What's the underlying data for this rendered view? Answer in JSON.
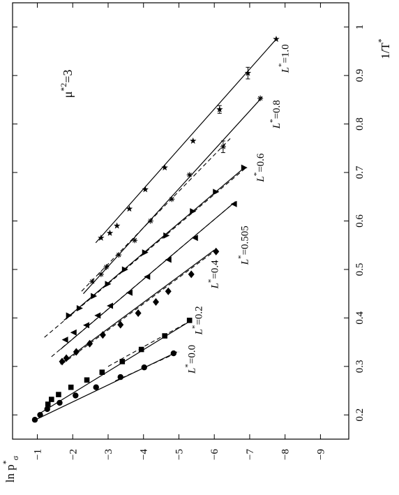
{
  "chart_data": {
    "type": "line",
    "orientation": "rotated-90-cw",
    "title": "",
    "annotation": {
      "mu": "μ",
      "sup": "*2",
      "rest": "=3"
    },
    "xlabel": {
      "main": "1/T",
      "sup": "*"
    },
    "ylabel": {
      "main": "ln p",
      "sub": "σ",
      "sup": "*"
    },
    "xlim": [
      0.15,
      1.05
    ],
    "ylim": [
      -9.8,
      -0.3
    ],
    "xticks": [
      0.2,
      0.3,
      0.4,
      0.5,
      0.6,
      0.7,
      0.8,
      0.9,
      1
    ],
    "xtick_labels": [
      "0.2",
      "0.3",
      "0.4",
      "0.5",
      "0.6",
      "0.7",
      "0.8",
      "0.9",
      "1"
    ],
    "yticks": [
      -1,
      -2,
      -3,
      -4,
      -5,
      -6,
      -7,
      -8,
      -9
    ],
    "ytick_labels": [
      "−1",
      "−2",
      "−3",
      "−4",
      "−5",
      "−6",
      "−7",
      "−8",
      "−9"
    ],
    "grid": false,
    "legend": "none",
    "series": [
      {
        "label_prefix": "L",
        "label_sup": "*",
        "label_value": "=0.0",
        "label_at": [
          0.315,
          -5.45
        ],
        "label_side": "right",
        "marker": "circle",
        "fit": [
          [
            0.19,
            -0.95
          ],
          [
            0.33,
            -4.95
          ]
        ],
        "dashed": [
          [
            0.27,
            -3.2
          ],
          [
            0.33,
            -5.0
          ]
        ],
        "points": [
          [
            0.19,
            -0.93
          ],
          [
            0.2,
            -1.08
          ],
          [
            0.212,
            -1.28
          ],
          [
            0.225,
            -1.63
          ],
          [
            0.24,
            -2.08
          ],
          [
            0.257,
            -2.66
          ],
          [
            0.278,
            -3.35
          ],
          [
            0.298,
            -4.02
          ],
          [
            0.327,
            -4.85
          ]
        ]
      },
      {
        "label_prefix": "L",
        "label_sup": "*",
        "label_value": "=0.2",
        "label_at": [
          0.395,
          -5.65
        ],
        "label_side": "right",
        "marker": "square",
        "fit": [
          [
            0.2,
            -1.0
          ],
          [
            0.395,
            -5.35
          ]
        ],
        "dashed": [
          [
            0.3,
            -3.0
          ],
          [
            0.395,
            -5.35
          ]
        ],
        "points": [
          [
            0.222,
            -1.3
          ],
          [
            0.232,
            -1.4
          ],
          [
            0.242,
            -1.6
          ],
          [
            0.257,
            -1.95
          ],
          [
            0.272,
            -2.4
          ],
          [
            0.288,
            -2.83
          ],
          [
            0.31,
            -3.4
          ],
          [
            0.335,
            -3.94
          ],
          [
            0.363,
            -4.6
          ],
          [
            0.395,
            -5.3
          ]
        ]
      },
      {
        "label_prefix": "L",
        "label_sup": "*",
        "label_value": "=0.4",
        "label_at": [
          0.49,
          -6.1
        ],
        "label_side": "right",
        "marker": "diamond",
        "fit": [
          [
            0.305,
            -1.65
          ],
          [
            0.54,
            -6.0
          ]
        ],
        "dashed": [
          [
            0.305,
            -1.7
          ],
          [
            0.54,
            -6.05
          ]
        ],
        "points": [
          [
            0.31,
            -1.7
          ],
          [
            0.317,
            -1.82
          ],
          [
            0.33,
            -2.1
          ],
          [
            0.347,
            -2.48
          ],
          [
            0.365,
            -2.85
          ],
          [
            0.386,
            -3.35
          ],
          [
            0.41,
            -3.85
          ],
          [
            0.433,
            -4.35
          ],
          [
            0.455,
            -4.7
          ],
          [
            0.49,
            -5.35
          ],
          [
            0.537,
            -6.05
          ]
        ]
      },
      {
        "label_prefix": "L",
        "label_sup": "*",
        "label_value": "=0.505",
        "label_at": [
          0.55,
          -6.95
        ],
        "label_side": "right",
        "marker": "triangle-left",
        "fit": [
          [
            0.335,
            -1.65
          ],
          [
            0.64,
            -6.6
          ]
        ],
        "dashed": [
          [
            0.32,
            -1.4
          ],
          [
            0.64,
            -6.6
          ]
        ],
        "points": [
          [
            0.355,
            -1.78
          ],
          [
            0.37,
            -2.02
          ],
          [
            0.385,
            -2.38
          ],
          [
            0.405,
            -2.7
          ],
          [
            0.425,
            -3.05
          ],
          [
            0.452,
            -3.6
          ],
          [
            0.485,
            -4.1
          ],
          [
            0.52,
            -4.7
          ],
          [
            0.565,
            -5.45
          ],
          [
            0.635,
            -6.55
          ]
        ]
      },
      {
        "label_prefix": "L",
        "label_sup": "*",
        "label_value": "=0.6",
        "label_at": [
          0.71,
          -7.4
        ],
        "label_side": "right",
        "marker": "triangle-right",
        "fit": [
          [
            0.395,
            -1.75
          ],
          [
            0.71,
            -6.85
          ]
        ],
        "dashed": [
          [
            0.36,
            -1.2
          ],
          [
            0.71,
            -6.9
          ]
        ],
        "points": [
          [
            0.405,
            -1.9
          ],
          [
            0.42,
            -2.2
          ],
          [
            0.445,
            -2.6
          ],
          [
            0.47,
            -3.0
          ],
          [
            0.5,
            -3.48
          ],
          [
            0.535,
            -4.05
          ],
          [
            0.57,
            -4.65
          ],
          [
            0.62,
            -5.4
          ],
          [
            0.66,
            -6.05
          ],
          [
            0.71,
            -6.85
          ]
        ]
      },
      {
        "label_prefix": "L",
        "label_sup": "*",
        "label_value": "=0.8",
        "label_at": [
          0.82,
          -7.85
        ],
        "label_side": "right",
        "marker": "asterisk",
        "fit": [
          [
            0.45,
            -2.3
          ],
          [
            0.855,
            -7.35
          ]
        ],
        "dashed": [
          [
            0.455,
            -2.25
          ],
          [
            0.77,
            -6.45
          ]
        ],
        "points": [
          [
            0.475,
            -2.55
          ],
          [
            0.49,
            -2.8
          ],
          [
            0.505,
            -2.95
          ],
          [
            0.53,
            -3.3
          ],
          [
            0.56,
            -3.75
          ],
          [
            0.6,
            -4.2
          ],
          [
            0.645,
            -4.8
          ],
          [
            0.695,
            -5.3
          ],
          [
            0.753,
            -6.25
          ],
          [
            0.853,
            -7.3
          ]
        ],
        "errorbars": [
          [
            0.753,
            -6.25,
            0.012
          ]
        ]
      },
      {
        "label_prefix": "L",
        "label_sup": "*",
        "label_value": "=1.0",
        "label_at": [
          0.935,
          -8.1
        ],
        "label_side": "right",
        "marker": "star",
        "fit": [
          [
            0.555,
            -2.65
          ],
          [
            0.975,
            -7.75
          ]
        ],
        "dashed": [],
        "points": [
          [
            0.565,
            -2.8
          ],
          [
            0.575,
            -3.05
          ],
          [
            0.59,
            -3.25
          ],
          [
            0.625,
            -3.6
          ],
          [
            0.665,
            -4.05
          ],
          [
            0.71,
            -4.6
          ],
          [
            0.765,
            -5.4
          ],
          [
            0.83,
            -6.15
          ],
          [
            0.905,
            -6.95
          ],
          [
            0.975,
            -7.75
          ]
        ],
        "errorbars": [
          [
            0.83,
            -6.15,
            0.008
          ],
          [
            0.905,
            -6.95,
            0.012
          ]
        ]
      }
    ]
  }
}
